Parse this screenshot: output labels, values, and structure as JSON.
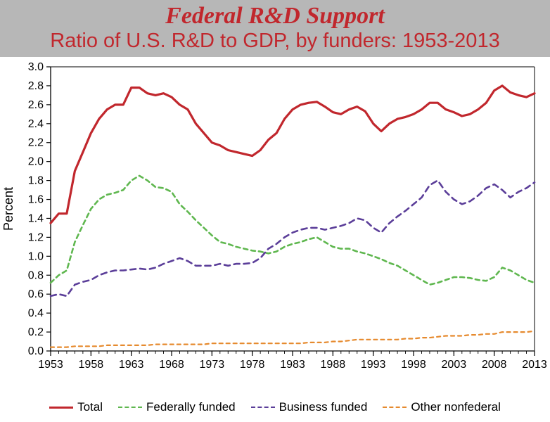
{
  "header": {
    "title": "Federal R&D Support",
    "subtitle": "Ratio of U.S. R&D to GDP, by funders:  1953-2013"
  },
  "chart": {
    "type": "line",
    "background_color": "#ffffff",
    "axis_color": "#000000",
    "grid": false,
    "ylabel": "Percent",
    "label_fontsize": 18,
    "tick_fontsize": 16,
    "xlim": [
      1953,
      2013
    ],
    "ylim": [
      0.0,
      3.0
    ],
    "xticks": [
      1953,
      1958,
      1963,
      1968,
      1973,
      1978,
      1983,
      1988,
      1993,
      1998,
      2003,
      2008,
      2013
    ],
    "yticks": [
      0.0,
      0.2,
      0.4,
      0.6,
      0.8,
      1.0,
      1.2,
      1.4,
      1.6,
      1.8,
      2.0,
      2.2,
      2.4,
      2.6,
      2.8,
      3.0
    ],
    "tick_minor_x": true,
    "series": [
      {
        "name": "Total",
        "color": "#c1272d",
        "line_width": 3.2,
        "dash": "solid",
        "x": [
          1953,
          1954,
          1955,
          1956,
          1957,
          1958,
          1959,
          1960,
          1961,
          1962,
          1963,
          1964,
          1965,
          1966,
          1967,
          1968,
          1969,
          1970,
          1971,
          1972,
          1973,
          1974,
          1975,
          1976,
          1977,
          1978,
          1979,
          1980,
          1981,
          1982,
          1983,
          1984,
          1985,
          1986,
          1987,
          1988,
          1989,
          1990,
          1991,
          1992,
          1993,
          1994,
          1995,
          1996,
          1997,
          1998,
          1999,
          2000,
          2001,
          2002,
          2003,
          2004,
          2005,
          2006,
          2007,
          2008,
          2009,
          2010,
          2011,
          2012,
          2013
        ],
        "y": [
          1.35,
          1.45,
          1.45,
          1.9,
          2.1,
          2.3,
          2.45,
          2.55,
          2.6,
          2.6,
          2.78,
          2.78,
          2.72,
          2.7,
          2.72,
          2.68,
          2.6,
          2.55,
          2.4,
          2.3,
          2.2,
          2.17,
          2.12,
          2.1,
          2.08,
          2.06,
          2.12,
          2.23,
          2.3,
          2.45,
          2.55,
          2.6,
          2.62,
          2.63,
          2.58,
          2.52,
          2.5,
          2.55,
          2.58,
          2.53,
          2.4,
          2.32,
          2.4,
          2.45,
          2.47,
          2.5,
          2.55,
          2.62,
          2.62,
          2.55,
          2.52,
          2.48,
          2.5,
          2.55,
          2.62,
          2.75,
          2.8,
          2.73,
          2.7,
          2.68,
          2.72
        ]
      },
      {
        "name": "Federally funded",
        "color": "#5fb74f",
        "line_width": 2.6,
        "dash": "6,5",
        "x": [
          1953,
          1954,
          1955,
          1956,
          1957,
          1958,
          1959,
          1960,
          1961,
          1962,
          1963,
          1964,
          1965,
          1966,
          1967,
          1968,
          1969,
          1970,
          1971,
          1972,
          1973,
          1974,
          1975,
          1976,
          1977,
          1978,
          1979,
          1980,
          1981,
          1982,
          1983,
          1984,
          1985,
          1986,
          1987,
          1988,
          1989,
          1990,
          1991,
          1992,
          1993,
          1994,
          1995,
          1996,
          1997,
          1998,
          1999,
          2000,
          2001,
          2002,
          2003,
          2004,
          2005,
          2006,
          2007,
          2008,
          2009,
          2010,
          2011,
          2012,
          2013
        ],
        "y": [
          0.72,
          0.8,
          0.85,
          1.15,
          1.33,
          1.5,
          1.6,
          1.65,
          1.67,
          1.7,
          1.8,
          1.85,
          1.8,
          1.73,
          1.72,
          1.68,
          1.55,
          1.47,
          1.38,
          1.3,
          1.22,
          1.15,
          1.13,
          1.1,
          1.08,
          1.06,
          1.05,
          1.03,
          1.05,
          1.1,
          1.13,
          1.15,
          1.18,
          1.2,
          1.15,
          1.1,
          1.08,
          1.08,
          1.05,
          1.03,
          1.0,
          0.97,
          0.93,
          0.9,
          0.85,
          0.8,
          0.75,
          0.7,
          0.72,
          0.75,
          0.78,
          0.78,
          0.77,
          0.75,
          0.74,
          0.78,
          0.88,
          0.85,
          0.8,
          0.75,
          0.72
        ]
      },
      {
        "name": "Business funded",
        "color": "#5b3e99",
        "line_width": 2.6,
        "dash": "8,6",
        "x": [
          1953,
          1954,
          1955,
          1956,
          1957,
          1958,
          1959,
          1960,
          1961,
          1962,
          1963,
          1964,
          1965,
          1966,
          1967,
          1968,
          1969,
          1970,
          1971,
          1972,
          1973,
          1974,
          1975,
          1976,
          1977,
          1978,
          1979,
          1980,
          1981,
          1982,
          1983,
          1984,
          1985,
          1986,
          1987,
          1988,
          1989,
          1990,
          1991,
          1992,
          1993,
          1994,
          1995,
          1996,
          1997,
          1998,
          1999,
          2000,
          2001,
          2002,
          2003,
          2004,
          2005,
          2006,
          2007,
          2008,
          2009,
          2010,
          2011,
          2012,
          2013
        ],
        "y": [
          0.58,
          0.6,
          0.58,
          0.7,
          0.73,
          0.75,
          0.8,
          0.83,
          0.85,
          0.85,
          0.86,
          0.87,
          0.86,
          0.88,
          0.92,
          0.95,
          0.98,
          0.95,
          0.9,
          0.9,
          0.9,
          0.92,
          0.9,
          0.92,
          0.92,
          0.93,
          0.98,
          1.08,
          1.13,
          1.2,
          1.25,
          1.28,
          1.3,
          1.3,
          1.28,
          1.3,
          1.32,
          1.35,
          1.4,
          1.38,
          1.3,
          1.25,
          1.35,
          1.42,
          1.48,
          1.55,
          1.62,
          1.75,
          1.8,
          1.68,
          1.6,
          1.55,
          1.58,
          1.64,
          1.72,
          1.76,
          1.7,
          1.62,
          1.68,
          1.72,
          1.78
        ]
      },
      {
        "name": "Other nonfederal",
        "color": "#e68a2e",
        "line_width": 2.2,
        "dash": "5,5",
        "x": [
          1953,
          1954,
          1955,
          1956,
          1957,
          1958,
          1959,
          1960,
          1961,
          1962,
          1963,
          1964,
          1965,
          1966,
          1967,
          1968,
          1969,
          1970,
          1971,
          1972,
          1973,
          1974,
          1975,
          1976,
          1977,
          1978,
          1979,
          1980,
          1981,
          1982,
          1983,
          1984,
          1985,
          1986,
          1987,
          1988,
          1989,
          1990,
          1991,
          1992,
          1993,
          1994,
          1995,
          1996,
          1997,
          1998,
          1999,
          2000,
          2001,
          2002,
          2003,
          2004,
          2005,
          2006,
          2007,
          2008,
          2009,
          2010,
          2011,
          2012,
          2013
        ],
        "y": [
          0.04,
          0.04,
          0.04,
          0.05,
          0.05,
          0.05,
          0.05,
          0.06,
          0.06,
          0.06,
          0.06,
          0.06,
          0.06,
          0.07,
          0.07,
          0.07,
          0.07,
          0.07,
          0.07,
          0.07,
          0.08,
          0.08,
          0.08,
          0.08,
          0.08,
          0.08,
          0.08,
          0.08,
          0.08,
          0.08,
          0.08,
          0.08,
          0.09,
          0.09,
          0.09,
          0.1,
          0.1,
          0.11,
          0.12,
          0.12,
          0.12,
          0.12,
          0.12,
          0.12,
          0.13,
          0.13,
          0.14,
          0.14,
          0.15,
          0.16,
          0.16,
          0.16,
          0.17,
          0.17,
          0.18,
          0.18,
          0.2,
          0.2,
          0.2,
          0.2,
          0.21
        ]
      }
    ],
    "legend": {
      "position": "bottom",
      "items": [
        {
          "label": "Total",
          "series": 0
        },
        {
          "label": "Federally funded",
          "series": 1
        },
        {
          "label": "Business funded",
          "series": 2
        },
        {
          "label": "Other nonfederal",
          "series": 3
        }
      ]
    }
  }
}
